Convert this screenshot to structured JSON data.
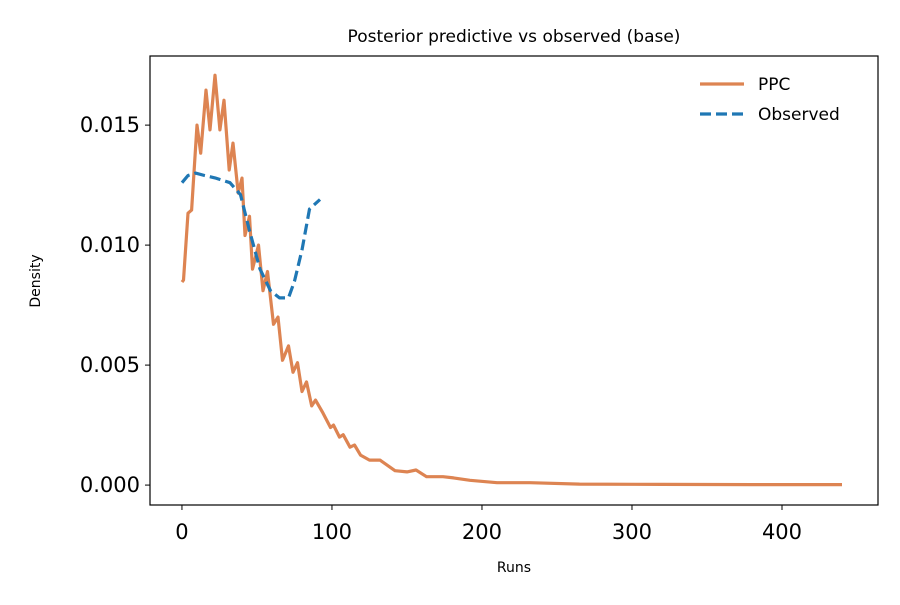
{
  "chart_data": {
    "type": "line",
    "title": "Posterior predictive vs observed (base)",
    "xlabel": "Runs",
    "ylabel": "Density",
    "xlim": [
      -21.3,
      464
    ],
    "ylim": [
      -0.00083,
      0.01788
    ],
    "xticks": [
      0,
      100,
      200,
      300,
      400
    ],
    "xtick_labels": [
      "0",
      "100",
      "200",
      "300",
      "400"
    ],
    "yticks": [
      0,
      0.005,
      0.01,
      0.015
    ],
    "ytick_labels": [
      "0.000",
      "0.005",
      "0.010",
      "0.015"
    ],
    "grid": false,
    "legend_position": "top-right",
    "series": [
      {
        "name": "PPC",
        "color": "#dd8452",
        "style": "solid",
        "x": [
          0,
          1,
          4,
          6.4,
          10,
          12.5,
          16,
          18.7,
          22,
          25.3,
          28,
          31.5,
          34,
          37.5,
          40,
          42,
          45,
          47,
          51,
          54,
          57,
          61,
          64,
          67,
          69,
          71,
          74,
          77,
          80,
          83,
          86.5,
          89,
          94,
          99,
          101,
          105,
          107.5,
          112,
          115,
          119,
          125,
          132,
          142,
          150,
          156,
          163,
          174,
          181,
          192,
          210,
          232,
          265,
          320,
          380,
          440
        ],
        "y": [
          0.00846,
          0.00854,
          0.01133,
          0.01146,
          0.015,
          0.01383,
          0.01646,
          0.0148,
          0.01708,
          0.0148,
          0.01604,
          0.01313,
          0.01425,
          0.01217,
          0.01279,
          0.0104,
          0.0112,
          0.009,
          0.01,
          0.0081,
          0.0089,
          0.0067,
          0.007,
          0.0052,
          0.0055,
          0.0058,
          0.0047,
          0.0051,
          0.0039,
          0.0043,
          0.0033,
          0.00354,
          0.003,
          0.0024,
          0.0025,
          0.002,
          0.0021,
          0.00158,
          0.00167,
          0.00125,
          0.00104,
          0.00104,
          0.0006,
          0.00055,
          0.00063,
          0.00035,
          0.00035,
          0.0003,
          0.0002,
          0.0001,
          0.0001,
          4e-05,
          3e-05,
          2e-05,
          2e-05
        ]
      },
      {
        "name": "Observed",
        "color": "#1f77b4",
        "style": "dashed",
        "x": [
          0,
          4,
          9,
          15,
          22,
          32,
          39,
          45,
          52,
          59,
          65,
          71,
          75,
          80,
          85,
          92
        ],
        "y": [
          0.0126,
          0.0129,
          0.013,
          0.0129,
          0.0128,
          0.0126,
          0.0121,
          0.0106,
          0.009,
          0.0081,
          0.0078,
          0.0078,
          0.0085,
          0.0098,
          0.0115,
          0.0119
        ]
      }
    ]
  }
}
